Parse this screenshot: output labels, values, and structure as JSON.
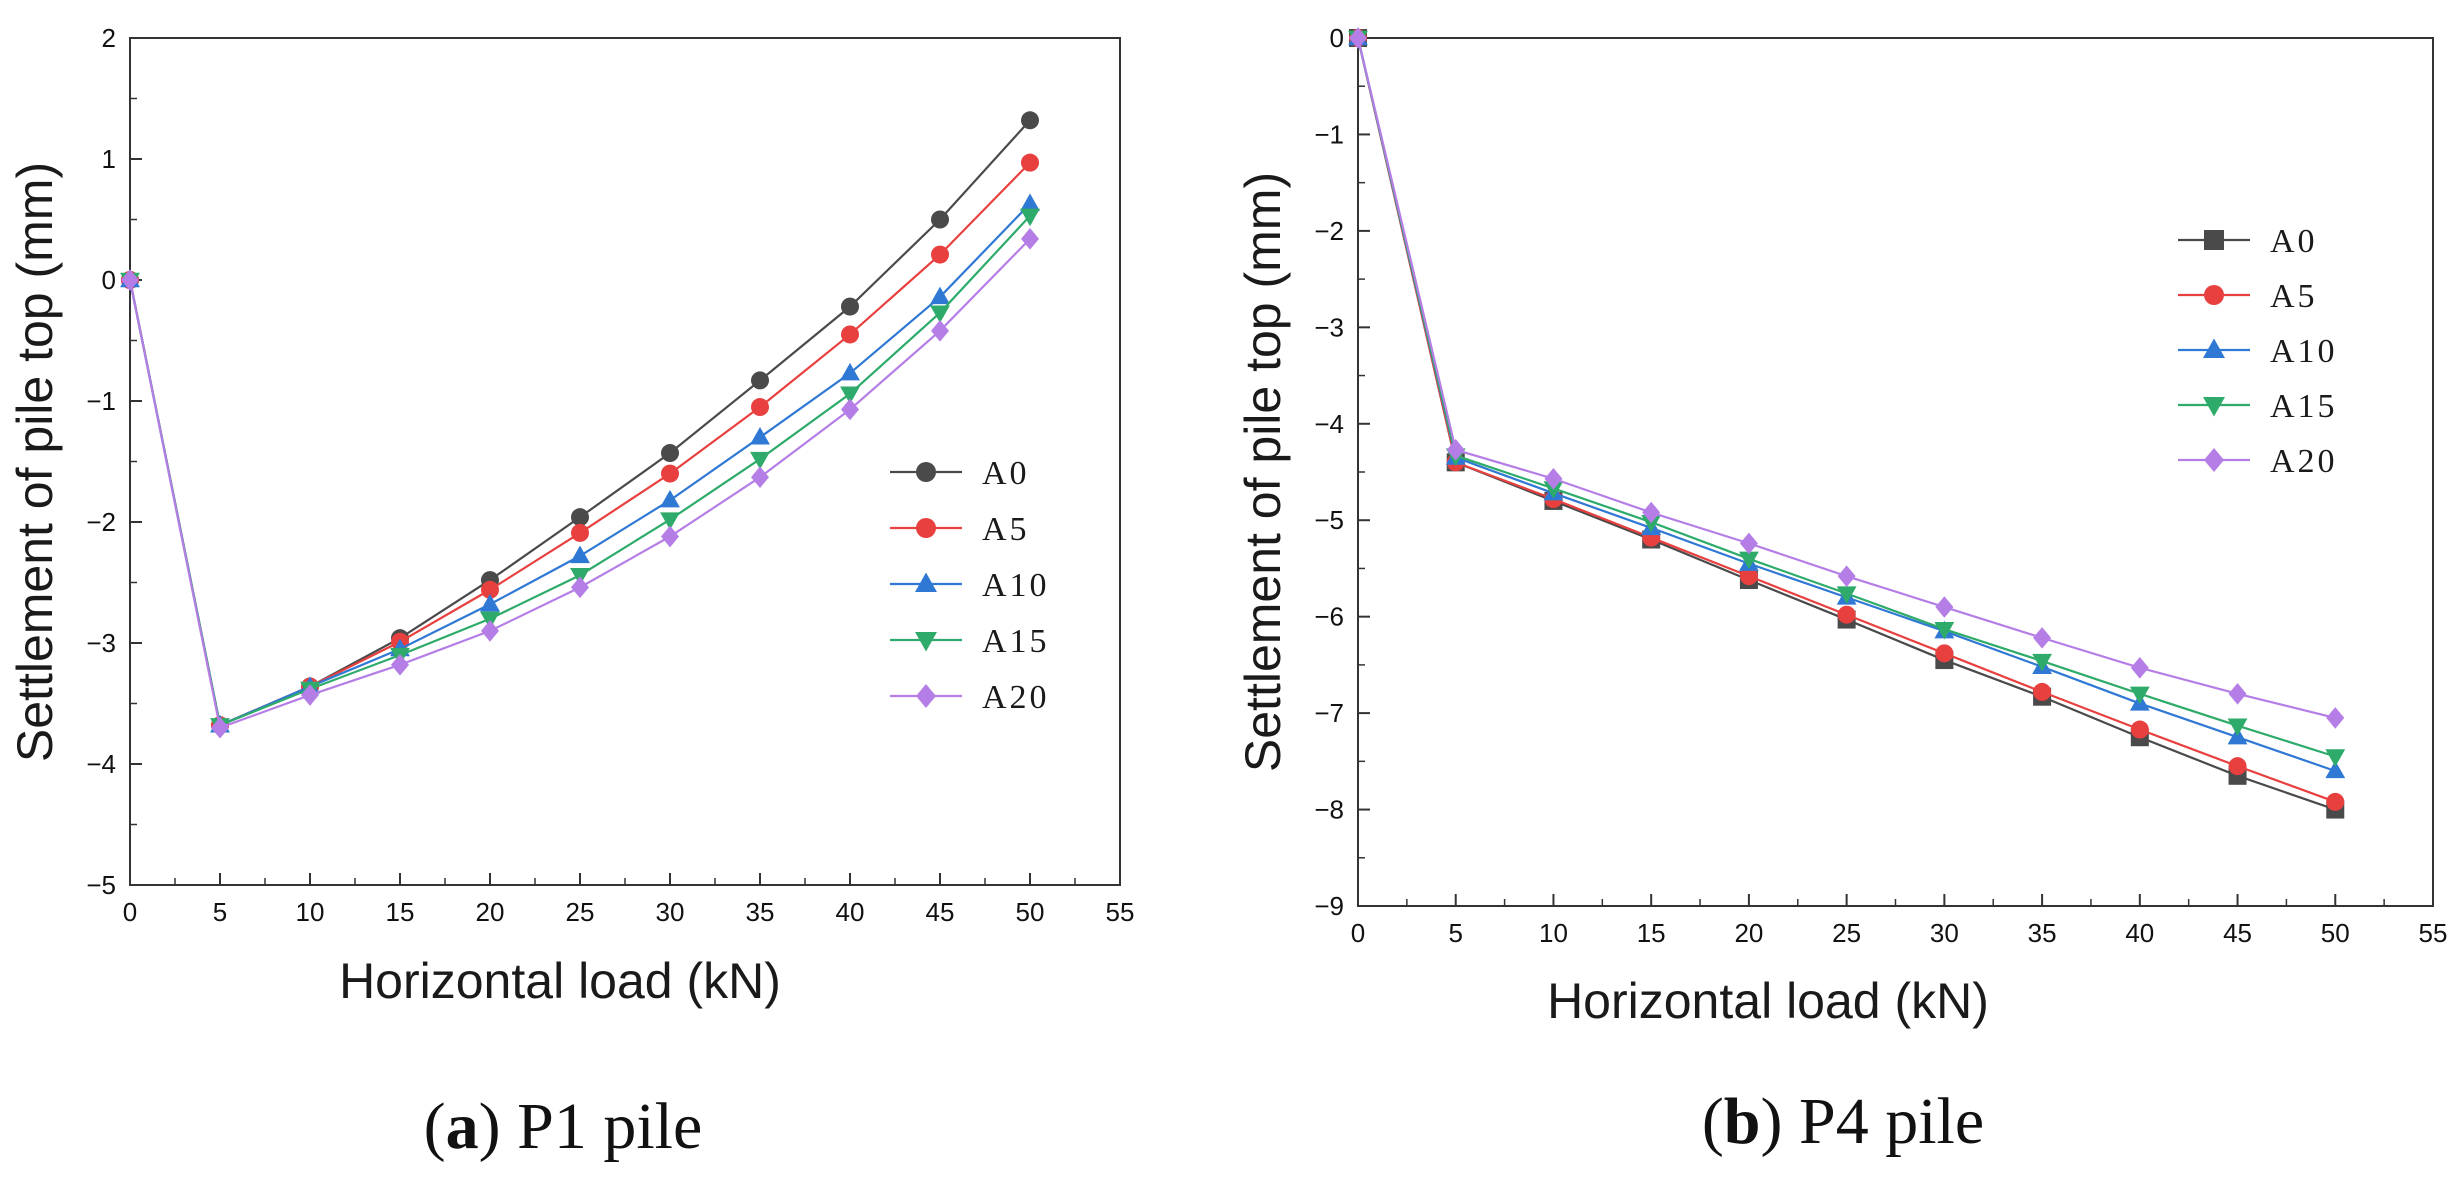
{
  "chart_data": [
    {
      "type": "line",
      "title": "",
      "caption_letter": "a",
      "caption_text": "P1 pile",
      "xlabel": "Horizontal load (kN)",
      "ylabel": "Settlement of pile top (mm)",
      "xlim": [
        0,
        55
      ],
      "ylim": [
        -5,
        2
      ],
      "xticks": [
        0,
        5,
        10,
        15,
        20,
        25,
        30,
        35,
        40,
        45,
        50,
        55
      ],
      "yticks": [
        -5,
        -4,
        -3,
        -2,
        -1,
        0,
        1,
        2
      ],
      "legend_position": "right-middle",
      "x": [
        0,
        5,
        10,
        15,
        20,
        25,
        30,
        35,
        40,
        45,
        50
      ],
      "series": [
        {
          "name": "A0",
          "marker": "circle",
          "color": "#4a4a4a",
          "values": [
            0,
            -3.68,
            -3.36,
            -2.96,
            -2.48,
            -1.96,
            -1.43,
            -0.83,
            -0.22,
            0.5,
            1.32
          ]
        },
        {
          "name": "A5",
          "marker": "circle",
          "color": "#e8403f",
          "values": [
            0,
            -3.68,
            -3.36,
            -2.99,
            -2.56,
            -2.09,
            -1.6,
            -1.05,
            -0.45,
            0.21,
            0.97
          ]
        },
        {
          "name": "A10",
          "marker": "triangle-up",
          "color": "#2f78d4",
          "values": [
            0,
            -3.68,
            -3.36,
            -3.05,
            -2.68,
            -2.28,
            -1.82,
            -1.3,
            -0.77,
            -0.14,
            0.63
          ]
        },
        {
          "name": "A15",
          "marker": "triangle-down",
          "color": "#2eab6a",
          "values": [
            0,
            -3.68,
            -3.38,
            -3.1,
            -2.8,
            -2.44,
            -1.98,
            -1.48,
            -0.94,
            -0.27,
            0.53
          ]
        },
        {
          "name": "A20",
          "marker": "diamond",
          "color": "#b57ee6",
          "values": [
            0,
            -3.7,
            -3.43,
            -3.18,
            -2.9,
            -2.54,
            -2.12,
            -1.63,
            -1.07,
            -0.42,
            0.34
          ]
        }
      ]
    },
    {
      "type": "line",
      "title": "",
      "caption_letter": "b",
      "caption_text": "P4 pile",
      "xlabel": "Horizontal load (kN)",
      "ylabel": "Settlement of pile top (mm)",
      "xlim": [
        0,
        55
      ],
      "ylim": [
        -9,
        0
      ],
      "xticks": [
        0,
        5,
        10,
        15,
        20,
        25,
        30,
        35,
        40,
        45,
        50,
        55
      ],
      "yticks": [
        -9,
        -8,
        -7,
        -6,
        -5,
        -4,
        -3,
        -2,
        -1,
        0
      ],
      "legend_position": "top-right",
      "x": [
        0,
        5,
        10,
        15,
        20,
        25,
        30,
        35,
        40,
        45,
        50
      ],
      "series": [
        {
          "name": "A0",
          "marker": "square",
          "color": "#4a4a4a",
          "values": [
            0,
            -4.4,
            -4.8,
            -5.2,
            -5.62,
            -6.03,
            -6.45,
            -6.83,
            -7.25,
            -7.65,
            -8.0
          ]
        },
        {
          "name": "A5",
          "marker": "circle",
          "color": "#e8403f",
          "values": [
            0,
            -4.4,
            -4.78,
            -5.18,
            -5.58,
            -5.98,
            -6.38,
            -6.78,
            -7.17,
            -7.55,
            -7.92
          ]
        },
        {
          "name": "A10",
          "marker": "triangle-up",
          "color": "#2f78d4",
          "values": [
            0,
            -4.35,
            -4.72,
            -5.08,
            -5.45,
            -5.8,
            -6.15,
            -6.52,
            -6.9,
            -7.25,
            -7.6
          ]
        },
        {
          "name": "A15",
          "marker": "triangle-down",
          "color": "#2eab6a",
          "values": [
            0,
            -4.33,
            -4.67,
            -5.02,
            -5.4,
            -5.76,
            -6.13,
            -6.46,
            -6.8,
            -7.13,
            -7.45
          ]
        },
        {
          "name": "A20",
          "marker": "diamond",
          "color": "#b57ee6",
          "values": [
            0,
            -4.27,
            -4.57,
            -4.92,
            -5.24,
            -5.58,
            -5.9,
            -6.22,
            -6.53,
            -6.8,
            -7.05
          ]
        }
      ]
    }
  ]
}
